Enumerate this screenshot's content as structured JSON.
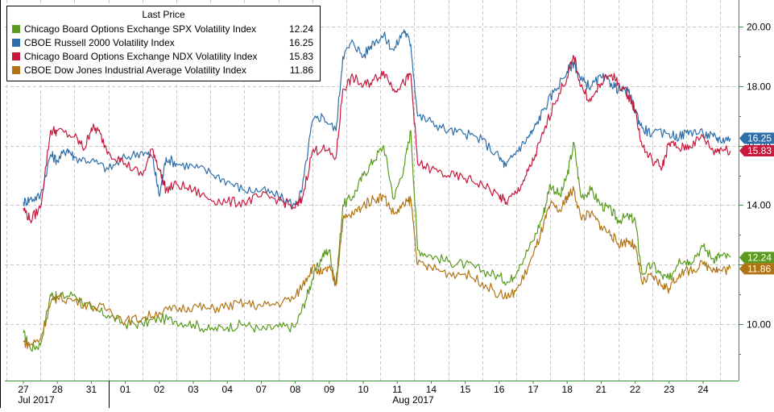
{
  "chart_data": {
    "type": "line",
    "legend": {
      "title": "Last Price",
      "position": "top-left",
      "entries": [
        {
          "name": "Chicago Board Options Exchange SPX Volatility Index",
          "value": "12.24",
          "color": "#5a9a1f"
        },
        {
          "name": "CBOE Russell 2000 Volatility Index",
          "value": "16.25",
          "color": "#2f6ea9"
        },
        {
          "name": "Chicago Board Options Exchange NDX Volatility Index",
          "value": "15.83",
          "color": "#c8193c"
        },
        {
          "name": "CBOE Dow Jones Industrial Average Volatility Index",
          "value": "11.86",
          "color": "#b07414"
        }
      ]
    },
    "y_axis": {
      "side": "right",
      "range": [
        8.1,
        20.9
      ],
      "ticks": [
        "10.00",
        "12.00",
        "14.00",
        "16.00",
        "18.00",
        "20.00"
      ],
      "grid": true
    },
    "x_axis": {
      "days": [
        "27",
        "28",
        "31",
        "01",
        "02",
        "03",
        "04",
        "07",
        "08",
        "09",
        "10",
        "11",
        "14",
        "15",
        "16",
        "17",
        "18",
        "21",
        "22",
        "23",
        "24"
      ],
      "months": [
        {
          "label": "Jul 2017",
          "from": 0,
          "to": 2
        },
        {
          "label": "Aug 2017",
          "from": 3,
          "to": 20
        }
      ],
      "grid": "dashed vertical at day boundaries"
    },
    "series": [
      {
        "name": "Chicago Board Options Exchange SPX Volatility Index",
        "color": "#5a9a1f",
        "last": 12.24,
        "points": [
          [
            0,
            9.7
          ],
          [
            0.2,
            9.2
          ],
          [
            0.5,
            9.3
          ],
          [
            0.8,
            11.0
          ],
          [
            1.0,
            10.9
          ],
          [
            1.5,
            11.0
          ],
          [
            2.0,
            10.5
          ],
          [
            2.5,
            10.3
          ],
          [
            3.0,
            10.0
          ],
          [
            3.5,
            10.0
          ],
          [
            4.0,
            10.2
          ],
          [
            4.5,
            10.1
          ],
          [
            5.0,
            10.0
          ],
          [
            5.5,
            9.8
          ],
          [
            6.0,
            9.9
          ],
          [
            6.5,
            10.0
          ],
          [
            7.0,
            9.8
          ],
          [
            7.5,
            9.9
          ],
          [
            8.0,
            9.9
          ],
          [
            8.3,
            10.8
          ],
          [
            8.5,
            11.5
          ],
          [
            8.8,
            12.3
          ],
          [
            9.0,
            12.5
          ],
          [
            9.2,
            11.3
          ],
          [
            9.4,
            14.0
          ],
          [
            9.7,
            14.3
          ],
          [
            10.0,
            15.0
          ],
          [
            10.3,
            15.5
          ],
          [
            10.6,
            16.0
          ],
          [
            10.9,
            14.2
          ],
          [
            11.2,
            15.3
          ],
          [
            11.4,
            16.5
          ],
          [
            11.6,
            12.5
          ],
          [
            12.0,
            12.3
          ],
          [
            12.5,
            12.1
          ],
          [
            13.0,
            12.0
          ],
          [
            13.5,
            11.8
          ],
          [
            14.0,
            11.6
          ],
          [
            14.3,
            11.4
          ],
          [
            14.6,
            12.0
          ],
          [
            15.0,
            12.8
          ],
          [
            15.3,
            13.7
          ],
          [
            15.5,
            14.7
          ],
          [
            15.8,
            14.3
          ],
          [
            16.0,
            15.0
          ],
          [
            16.2,
            16.1
          ],
          [
            16.4,
            14.3
          ],
          [
            16.7,
            14.5
          ],
          [
            17.0,
            14.0
          ],
          [
            17.3,
            13.8
          ],
          [
            17.5,
            13.5
          ],
          [
            17.8,
            13.6
          ],
          [
            18.0,
            13.5
          ],
          [
            18.2,
            11.7
          ],
          [
            18.5,
            12.0
          ],
          [
            18.8,
            11.6
          ],
          [
            19.0,
            11.5
          ],
          [
            19.3,
            12.2
          ],
          [
            19.6,
            12.1
          ],
          [
            20.0,
            12.6
          ],
          [
            20.3,
            12.2
          ],
          [
            20.5,
            12.3
          ],
          [
            20.8,
            12.24
          ]
        ]
      },
      {
        "name": "CBOE Russell 2000 Volatility Index",
        "color": "#2f6ea9",
        "last": 16.25,
        "points": [
          [
            0,
            14.1
          ],
          [
            0.2,
            14.2
          ],
          [
            0.5,
            14.3
          ],
          [
            0.8,
            15.7
          ],
          [
            1.0,
            15.5
          ],
          [
            1.3,
            15.9
          ],
          [
            1.5,
            15.6
          ],
          [
            2.0,
            15.5
          ],
          [
            2.5,
            15.2
          ],
          [
            3.0,
            15.6
          ],
          [
            3.5,
            15.8
          ],
          [
            3.8,
            15.6
          ],
          [
            4.0,
            14.3
          ],
          [
            4.2,
            15.6
          ],
          [
            4.5,
            15.4
          ],
          [
            5.0,
            15.3
          ],
          [
            5.5,
            15.1
          ],
          [
            6.0,
            14.8
          ],
          [
            6.5,
            14.5
          ],
          [
            7.0,
            14.5
          ],
          [
            7.5,
            14.3
          ],
          [
            8.0,
            14.0
          ],
          [
            8.2,
            14.5
          ],
          [
            8.5,
            16.8
          ],
          [
            8.8,
            17.0
          ],
          [
            9.2,
            16.5
          ],
          [
            9.4,
            19.0
          ],
          [
            9.7,
            19.5
          ],
          [
            10.0,
            19.0
          ],
          [
            10.3,
            19.5
          ],
          [
            10.6,
            19.7
          ],
          [
            10.9,
            19.2
          ],
          [
            11.2,
            19.9
          ],
          [
            11.4,
            19.4
          ],
          [
            11.6,
            17.0
          ],
          [
            12.0,
            16.8
          ],
          [
            12.5,
            16.5
          ],
          [
            13.0,
            16.4
          ],
          [
            13.5,
            16.2
          ],
          [
            14.0,
            15.6
          ],
          [
            14.2,
            15.3
          ],
          [
            14.5,
            15.8
          ],
          [
            14.8,
            16.2
          ],
          [
            15.0,
            16.5
          ],
          [
            15.3,
            17.2
          ],
          [
            15.6,
            17.8
          ],
          [
            16.0,
            18.5
          ],
          [
            16.2,
            18.8
          ],
          [
            16.4,
            18.2
          ],
          [
            16.7,
            18.0
          ],
          [
            17.0,
            18.3
          ],
          [
            17.3,
            18.1
          ],
          [
            17.5,
            17.9
          ],
          [
            17.8,
            17.8
          ],
          [
            18.0,
            17.2
          ],
          [
            18.2,
            16.6
          ],
          [
            18.5,
            16.4
          ],
          [
            19.0,
            16.4
          ],
          [
            19.3,
            16.3
          ],
          [
            19.6,
            16.5
          ],
          [
            20.0,
            16.4
          ],
          [
            20.3,
            16.3
          ],
          [
            20.5,
            16.2
          ],
          [
            20.8,
            16.25
          ]
        ]
      },
      {
        "name": "Chicago Board Options Exchange NDX Volatility Index",
        "color": "#c8193c",
        "last": 15.83,
        "points": [
          [
            0,
            13.9
          ],
          [
            0.2,
            13.5
          ],
          [
            0.5,
            13.9
          ],
          [
            0.8,
            16.5
          ],
          [
            1.0,
            16.5
          ],
          [
            1.5,
            16.3
          ],
          [
            1.8,
            15.9
          ],
          [
            2.0,
            16.6
          ],
          [
            2.2,
            16.5
          ],
          [
            2.5,
            15.8
          ],
          [
            3.0,
            15.4
          ],
          [
            3.5,
            15.0
          ],
          [
            3.8,
            15.9
          ],
          [
            4.0,
            15.2
          ],
          [
            4.2,
            14.5
          ],
          [
            4.5,
            14.7
          ],
          [
            5.0,
            14.5
          ],
          [
            5.5,
            14.2
          ],
          [
            6.0,
            14.1
          ],
          [
            6.5,
            14.1
          ],
          [
            7.0,
            14.3
          ],
          [
            7.5,
            14.2
          ],
          [
            8.0,
            13.9
          ],
          [
            8.2,
            14.2
          ],
          [
            8.5,
            15.8
          ],
          [
            8.8,
            15.9
          ],
          [
            9.2,
            15.6
          ],
          [
            9.4,
            17.9
          ],
          [
            9.7,
            18.3
          ],
          [
            10.0,
            18.0
          ],
          [
            10.3,
            18.2
          ],
          [
            10.6,
            18.5
          ],
          [
            10.9,
            17.9
          ],
          [
            11.2,
            18.1
          ],
          [
            11.4,
            18.4
          ],
          [
            11.6,
            15.4
          ],
          [
            12.0,
            15.2
          ],
          [
            12.5,
            15.0
          ],
          [
            13.0,
            14.9
          ],
          [
            13.5,
            14.7
          ],
          [
            14.0,
            14.3
          ],
          [
            14.2,
            14.1
          ],
          [
            14.5,
            14.4
          ],
          [
            14.8,
            15.0
          ],
          [
            15.0,
            15.5
          ],
          [
            15.3,
            16.4
          ],
          [
            15.6,
            17.4
          ],
          [
            16.0,
            18.3
          ],
          [
            16.2,
            19.0
          ],
          [
            16.4,
            18.0
          ],
          [
            16.7,
            17.5
          ],
          [
            17.0,
            18.1
          ],
          [
            17.3,
            18.4
          ],
          [
            17.5,
            18.1
          ],
          [
            17.8,
            17.7
          ],
          [
            18.0,
            17.2
          ],
          [
            18.2,
            16.0
          ],
          [
            18.5,
            15.5
          ],
          [
            18.8,
            15.3
          ],
          [
            19.0,
            16.1
          ],
          [
            19.3,
            15.9
          ],
          [
            19.6,
            16.0
          ],
          [
            20.0,
            16.3
          ],
          [
            20.3,
            15.8
          ],
          [
            20.5,
            15.9
          ],
          [
            20.8,
            15.83
          ]
        ]
      },
      {
        "name": "CBOE Dow Jones Industrial Average Volatility Index",
        "color": "#b07414",
        "last": 11.86,
        "points": [
          [
            0,
            9.4
          ],
          [
            0.2,
            9.3
          ],
          [
            0.5,
            9.5
          ],
          [
            0.8,
            10.7
          ],
          [
            1.0,
            10.9
          ],
          [
            1.5,
            10.8
          ],
          [
            2.0,
            10.6
          ],
          [
            2.5,
            10.5
          ],
          [
            3.0,
            10.1
          ],
          [
            3.5,
            10.2
          ],
          [
            4.0,
            10.4
          ],
          [
            4.5,
            10.5
          ],
          [
            5.0,
            10.6
          ],
          [
            5.5,
            10.5
          ],
          [
            6.0,
            10.6
          ],
          [
            6.5,
            10.7
          ],
          [
            7.0,
            10.6
          ],
          [
            7.5,
            10.7
          ],
          [
            8.0,
            10.9
          ],
          [
            8.3,
            11.5
          ],
          [
            8.5,
            11.9
          ],
          [
            8.8,
            11.7
          ],
          [
            9.0,
            11.9
          ],
          [
            9.2,
            11.3
          ],
          [
            9.4,
            13.5
          ],
          [
            9.7,
            13.7
          ],
          [
            10.0,
            14.0
          ],
          [
            10.3,
            14.2
          ],
          [
            10.6,
            14.3
          ],
          [
            10.9,
            13.7
          ],
          [
            11.2,
            14.0
          ],
          [
            11.4,
            14.2
          ],
          [
            11.6,
            12.0
          ],
          [
            12.0,
            11.9
          ],
          [
            12.5,
            11.7
          ],
          [
            13.0,
            11.7
          ],
          [
            13.5,
            11.4
          ],
          [
            14.0,
            11.0
          ],
          [
            14.3,
            10.9
          ],
          [
            14.6,
            11.3
          ],
          [
            15.0,
            12.3
          ],
          [
            15.3,
            13.3
          ],
          [
            15.5,
            14.0
          ],
          [
            15.8,
            13.8
          ],
          [
            16.0,
            14.3
          ],
          [
            16.2,
            14.5
          ],
          [
            16.4,
            13.6
          ],
          [
            16.7,
            13.7
          ],
          [
            17.0,
            13.3
          ],
          [
            17.3,
            13.0
          ],
          [
            17.5,
            12.7
          ],
          [
            17.8,
            12.8
          ],
          [
            18.0,
            12.6
          ],
          [
            18.2,
            11.4
          ],
          [
            18.5,
            11.6
          ],
          [
            18.8,
            11.3
          ],
          [
            19.0,
            11.2
          ],
          [
            19.3,
            11.7
          ],
          [
            19.6,
            11.8
          ],
          [
            20.0,
            12.0
          ],
          [
            20.3,
            11.9
          ],
          [
            20.5,
            11.8
          ],
          [
            20.8,
            11.86
          ]
        ]
      }
    ]
  }
}
